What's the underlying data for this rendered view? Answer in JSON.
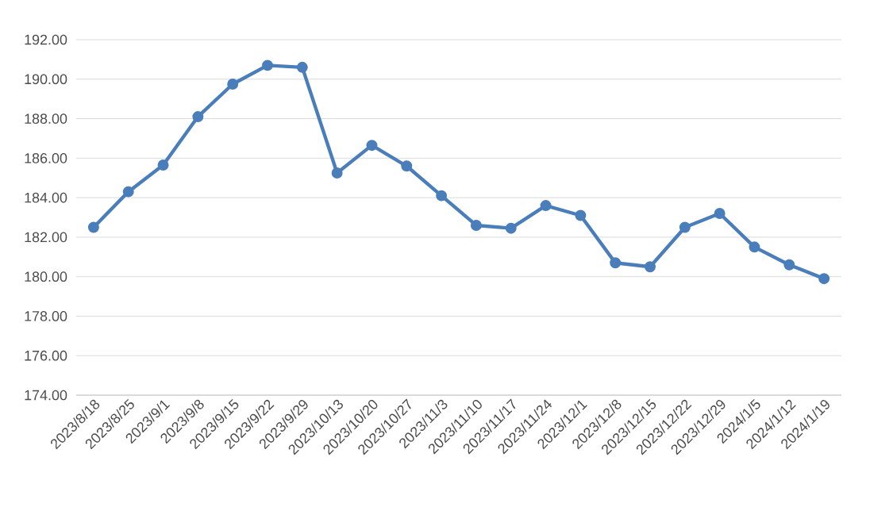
{
  "chart_data": {
    "type": "line",
    "categories": [
      "2023/8/18",
      "2023/8/25",
      "2023/9/1",
      "2023/9/8",
      "2023/9/15",
      "2023/9/22",
      "2023/9/29",
      "2023/10/13",
      "2023/10/20",
      "2023/10/27",
      "2023/11/3",
      "2023/11/10",
      "2023/11/17",
      "2023/11/24",
      "2023/12/1",
      "2023/12/8",
      "2023/12/15",
      "2023/12/22",
      "2023/12/29",
      "2024/1/5",
      "2024/1/12",
      "2024/1/19"
    ],
    "series": [
      {
        "color": "#4a7ebb",
        "values": [
          182.5,
          184.3,
          185.65,
          188.1,
          189.75,
          190.7,
          190.6,
          185.25,
          186.65,
          185.6,
          184.1,
          182.6,
          182.45,
          183.6,
          183.1,
          180.7,
          180.5,
          182.5,
          183.2,
          181.5,
          180.6,
          179.9
        ]
      }
    ],
    "ylim": [
      174,
      192
    ],
    "yticks": [
      {
        "value": 174,
        "label": "174.00"
      },
      {
        "value": 176,
        "label": "176.00"
      },
      {
        "value": 178,
        "label": "178.00"
      },
      {
        "value": 180,
        "label": "180.00"
      },
      {
        "value": 182,
        "label": "182.00"
      },
      {
        "value": 184,
        "label": "184.00"
      },
      {
        "value": 186,
        "label": "186.00"
      },
      {
        "value": 188,
        "label": "188.00"
      },
      {
        "value": 190,
        "label": "190.00"
      },
      {
        "value": 192,
        "label": "192.00"
      }
    ],
    "grid": "y",
    "marker": "circle",
    "line_style": "solid"
  }
}
